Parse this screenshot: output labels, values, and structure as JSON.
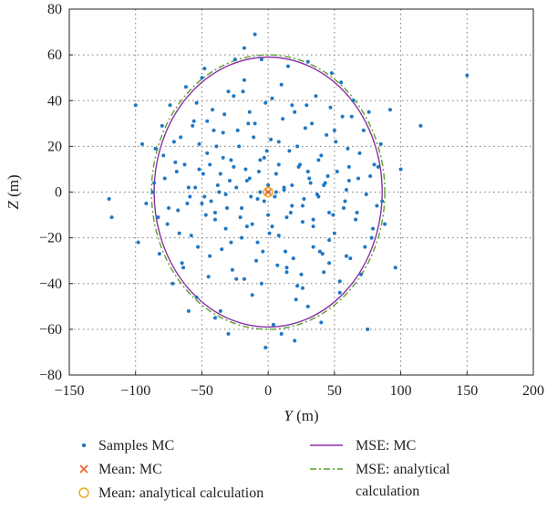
{
  "chart_data": {
    "type": "scatter",
    "xlabel": "Y (m)",
    "ylabel": "Z (m)",
    "xlim": [
      -150,
      200
    ],
    "ylim": [
      -80,
      80
    ],
    "xticks": [
      -150,
      -100,
      -50,
      0,
      50,
      100,
      150,
      200
    ],
    "yticks": [
      -80,
      -60,
      -40,
      -20,
      0,
      20,
      40,
      60,
      80
    ],
    "grid": true,
    "legend_position": "bottom",
    "series": [
      {
        "name": "Samples MC",
        "kind": "points",
        "color": "#1f77c4",
        "points": [
          [
            -120,
            -3
          ],
          [
            -118,
            -11
          ],
          [
            -100,
            38
          ],
          [
            -98,
            -22
          ],
          [
            -95,
            21
          ],
          [
            -87,
            0
          ],
          [
            -85,
            19
          ],
          [
            -82,
            -27
          ],
          [
            -80,
            29
          ],
          [
            -78,
            6
          ],
          [
            -76,
            -14
          ],
          [
            -74,
            38
          ],
          [
            -72,
            -40
          ],
          [
            -70,
            13
          ],
          [
            -68,
            -8
          ],
          [
            -66,
            24
          ],
          [
            -64,
            -33
          ],
          [
            -62,
            46
          ],
          [
            -60,
            2
          ],
          [
            -58,
            -19
          ],
          [
            -56,
            31
          ],
          [
            -54,
            -46
          ],
          [
            -52,
            10
          ],
          [
            -50,
            -5
          ],
          [
            -48,
            54
          ],
          [
            -46,
            17
          ],
          [
            -44,
            -28
          ],
          [
            -42,
            36
          ],
          [
            -40,
            -12
          ],
          [
            -38,
            3
          ],
          [
            -36,
            -52
          ],
          [
            -34,
            26
          ],
          [
            -32,
            -1
          ],
          [
            -30,
            44
          ],
          [
            -28,
            -22
          ],
          [
            -26,
            11
          ],
          [
            -24,
            -38
          ],
          [
            -22,
            20
          ],
          [
            -20,
            -7
          ],
          [
            -18,
            49
          ],
          [
            -16,
            -15
          ],
          [
            -14,
            6
          ],
          [
            -12,
            -45
          ],
          [
            -10,
            30
          ],
          [
            -8,
            -3
          ],
          [
            -6,
            14
          ],
          [
            -4,
            -26
          ],
          [
            -2,
            39
          ],
          [
            0,
            -10
          ],
          [
            2,
            23
          ],
          [
            4,
            -58
          ],
          [
            6,
            8
          ],
          [
            8,
            -19
          ],
          [
            10,
            47
          ],
          [
            12,
            1
          ],
          [
            14,
            -33
          ],
          [
            16,
            18
          ],
          [
            18,
            -6
          ],
          [
            20,
            35
          ],
          [
            22,
            -41
          ],
          [
            24,
            12
          ],
          [
            26,
            -13
          ],
          [
            28,
            28
          ],
          [
            30,
            -50
          ],
          [
            32,
            4
          ],
          [
            34,
            -24
          ],
          [
            36,
            42
          ],
          [
            38,
            -2
          ],
          [
            40,
            16
          ],
          [
            42,
            -35
          ],
          [
            44,
            25
          ],
          [
            46,
            -9
          ],
          [
            48,
            52
          ],
          [
            50,
            -18
          ],
          [
            52,
            9
          ],
          [
            54,
            -44
          ],
          [
            56,
            33
          ],
          [
            58,
            -4
          ],
          [
            60,
            19
          ],
          [
            62,
            -29
          ],
          [
            64,
            40
          ],
          [
            66,
            -12
          ],
          [
            68,
            6
          ],
          [
            70,
            -36
          ],
          [
            72,
            27
          ],
          [
            74,
            -1
          ],
          [
            76,
            35
          ],
          [
            78,
            -20
          ],
          [
            80,
            12
          ],
          [
            82,
            -6
          ],
          [
            85,
            21
          ],
          [
            88,
            -14
          ],
          [
            92,
            36
          ],
          [
            96,
            -33
          ],
          [
            100,
            10
          ],
          [
            115,
            29
          ],
          [
            150,
            51
          ],
          [
            75,
            -60
          ],
          [
            -10,
            69
          ],
          [
            -18,
            63
          ],
          [
            -30,
            -62
          ],
          [
            20,
            -65
          ],
          [
            -2,
            -68
          ],
          [
            40,
            -57
          ],
          [
            -50,
            50
          ],
          [
            55,
            48
          ],
          [
            -60,
            -52
          ],
          [
            -92,
            -5
          ],
          [
            -5,
            58
          ],
          [
            15,
            55
          ],
          [
            -25,
            58
          ],
          [
            30,
            57
          ],
          [
            -40,
            -55
          ],
          [
            10,
            -62
          ],
          [
            0,
            3
          ],
          [
            -3,
            -4
          ],
          [
            5,
            -2
          ],
          [
            -7,
            9
          ],
          [
            8,
            12
          ],
          [
            -12,
            -14
          ],
          [
            14,
            -11
          ],
          [
            -16,
            5
          ],
          [
            18,
            3
          ],
          [
            -20,
            -20
          ],
          [
            22,
            20
          ],
          [
            -24,
            2
          ],
          [
            26,
            -6
          ],
          [
            -28,
            14
          ],
          [
            30,
            9
          ],
          [
            -32,
            -16
          ],
          [
            34,
            -12
          ],
          [
            -36,
            8
          ],
          [
            38,
            14
          ],
          [
            -40,
            -9
          ],
          [
            42,
            3
          ],
          [
            -44,
            12
          ],
          [
            46,
            -21
          ],
          [
            -48,
            -2
          ],
          [
            50,
            27
          ],
          [
            -52,
            21
          ],
          [
            -9,
            -30
          ],
          [
            7,
            -32
          ],
          [
            -15,
            30
          ],
          [
            11,
            32
          ],
          [
            -27,
            -34
          ],
          [
            25,
            -36
          ],
          [
            -33,
            34
          ],
          [
            29,
            38
          ],
          [
            -5,
            -40
          ],
          [
            3,
            41
          ],
          [
            -19,
            44
          ],
          [
            21,
            -47
          ],
          [
            -45,
            -37
          ],
          [
            47,
            37
          ],
          [
            -55,
            2
          ],
          [
            57,
            -7
          ],
          [
            -63,
            12
          ],
          [
            61,
            11
          ],
          [
            -67,
            -18
          ],
          [
            69,
            17
          ],
          [
            -1,
            18
          ],
          [
            1,
            -18
          ],
          [
            -11,
            24
          ],
          [
            13,
            -26
          ],
          [
            -23,
            27
          ],
          [
            19,
            -29
          ],
          [
            -35,
            -25
          ],
          [
            33,
            30
          ],
          [
            -39,
            20
          ],
          [
            41,
            -27
          ],
          [
            -47,
            -10
          ],
          [
            45,
            7
          ],
          [
            -53,
            -24
          ],
          [
            51,
            22
          ],
          [
            -57,
            29
          ],
          [
            59,
            -28
          ],
          [
            -65,
            -31
          ],
          [
            63,
            33
          ],
          [
            -71,
            22
          ],
          [
            73,
            -24
          ],
          [
            -6,
            0
          ],
          [
            6,
            0
          ],
          [
            -13,
            -2
          ],
          [
            12,
            2
          ],
          [
            -17,
            10
          ],
          [
            17,
            -9
          ],
          [
            -21,
            -11
          ],
          [
            23,
            11
          ],
          [
            -29,
            5
          ],
          [
            27,
            -3
          ],
          [
            -31,
            -7
          ],
          [
            31,
            6
          ],
          [
            -37,
            0
          ],
          [
            37,
            -1
          ],
          [
            -43,
            -4
          ],
          [
            43,
            4
          ],
          [
            -49,
            8
          ],
          [
            49,
            -10
          ],
          [
            -59,
            -2
          ],
          [
            59,
            1
          ],
          [
            -3,
            15
          ],
          [
            3,
            -15
          ],
          [
            -8,
            -22
          ],
          [
            8,
            22
          ],
          [
            -14,
            35
          ],
          [
            14,
            -35
          ],
          [
            -18,
            -38
          ],
          [
            18,
            38
          ],
          [
            -26,
            42
          ],
          [
            26,
            -42
          ],
          [
            -34,
            15
          ],
          [
            34,
            -15
          ],
          [
            -41,
            27
          ],
          [
            39,
            -26
          ],
          [
            -46,
            31
          ],
          [
            46,
            -31
          ],
          [
            -54,
            39
          ],
          [
            54,
            -39
          ],
          [
            -61,
            -5
          ],
          [
            61,
            5
          ],
          [
            -69,
            9
          ],
          [
            67,
            -9
          ],
          [
            -75,
            -7
          ],
          [
            77,
            7
          ],
          [
            -79,
            16
          ],
          [
            79,
            -16
          ],
          [
            -83,
            -11
          ],
          [
            83,
            11
          ],
          [
            -86,
            4
          ],
          [
            86,
            -4
          ]
        ]
      },
      {
        "name": "Mean: MC",
        "kind": "marker-x",
        "color": "#e8622a",
        "points": [
          [
            0,
            0
          ]
        ]
      },
      {
        "name": "Mean: analytical calculation",
        "kind": "marker-circle",
        "color": "#f2a21b",
        "points": [
          [
            0,
            0
          ]
        ]
      },
      {
        "name": "MSE: MC",
        "kind": "ellipse",
        "color": "#8b2fa8",
        "center": [
          0,
          0
        ],
        "radius_y": 86,
        "radius_z": 59
      },
      {
        "name": "MSE: analytical calculation",
        "kind": "ellipse-dashdot",
        "color": "#5aa02c",
        "center": [
          0,
          0
        ],
        "radius_y": 88,
        "radius_z": 60
      }
    ],
    "legend": [
      {
        "label": "Samples MC",
        "symbol": "dot",
        "color": "#1f77c4"
      },
      {
        "label": "MSE: MC",
        "symbol": "line",
        "color": "#8b2fa8"
      },
      {
        "label": "Mean: MC",
        "symbol": "x",
        "color": "#e8622a"
      },
      {
        "label": "MSE: analytical",
        "label2": "calculation",
        "symbol": "dashdot",
        "color": "#5aa02c"
      },
      {
        "label": "Mean: analytical calculation",
        "symbol": "circle",
        "color": "#f2a21b"
      }
    ]
  }
}
